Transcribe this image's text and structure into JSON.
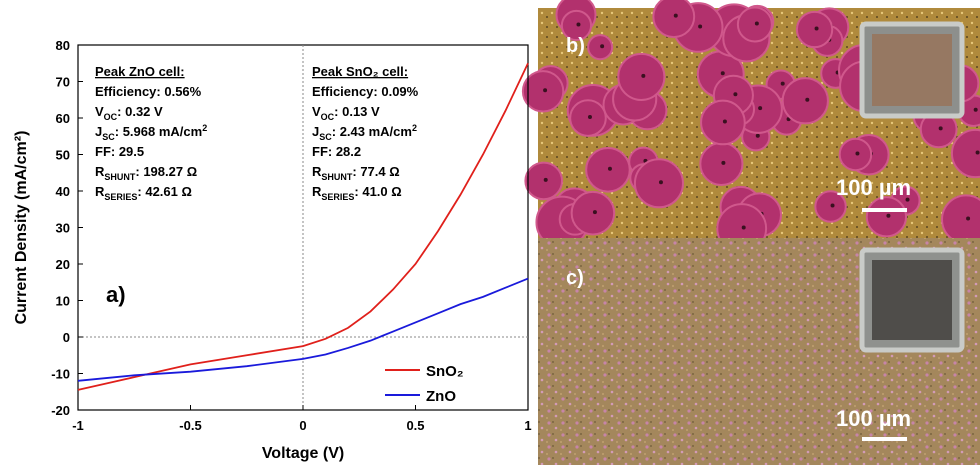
{
  "chart_data": {
    "type": "line",
    "panel_label": "a)",
    "x_label": "Voltage (V)",
    "y_label": "Current Density (mA/cm²)",
    "x": [
      -1,
      -0.75,
      -0.5,
      -0.25,
      0,
      0.1,
      0.2,
      0.3,
      0.4,
      0.5,
      0.6,
      0.7,
      0.8,
      0.9,
      1
    ],
    "series": [
      {
        "name": "SnO₂",
        "color": "#e0201b",
        "values": [
          -14.5,
          -11,
          -7.5,
          -5,
          -2.5,
          -0.5,
          2.5,
          7,
          13,
          20,
          29,
          39,
          50,
          62,
          75
        ]
      },
      {
        "name": "ZnO",
        "color": "#1a1adb",
        "values": [
          -12,
          -10.5,
          -9.5,
          -8,
          -6,
          -4.8,
          -3,
          -1,
          1.5,
          4,
          6.5,
          9,
          11,
          13.5,
          16
        ]
      }
    ],
    "xlim": [
      -1,
      1
    ],
    "ylim": [
      -20,
      80
    ],
    "xticks": [
      -1,
      -0.5,
      0,
      0.5,
      1
    ],
    "yticks": [
      -20,
      -10,
      0,
      10,
      20,
      30,
      40,
      50,
      60,
      70,
      80
    ],
    "zero_lines": true,
    "annotations": [
      {
        "heading": "Peak ZnO cell:",
        "lines": [
          [
            {
              "text": "Efficiency: 0.56%"
            }
          ],
          [
            {
              "text": "V"
            },
            {
              "text": "OC",
              "sub": true
            },
            {
              "text": ": 0.32 V"
            }
          ],
          [
            {
              "text": "J"
            },
            {
              "text": "SC",
              "sub": true
            },
            {
              "text": ": 5.968 mA/cm"
            },
            {
              "text": "2",
              "sup": true
            }
          ],
          [
            {
              "text": "FF: 29.5"
            }
          ],
          [
            {
              "text": "R"
            },
            {
              "text": "SHUNT",
              "sub": true
            },
            {
              "text": ": 198.27 Ω"
            }
          ],
          [
            {
              "text": "R"
            },
            {
              "text": "SERIES",
              "sub": true
            },
            {
              "text": ": 42.61 Ω"
            }
          ]
        ]
      },
      {
        "heading": "Peak SnO₂ cell:",
        "lines": [
          [
            {
              "text": "Efficiency: 0.09%"
            }
          ],
          [
            {
              "text": "V"
            },
            {
              "text": "OC",
              "sub": true
            },
            {
              "text": ": 0.13 V"
            }
          ],
          [
            {
              "text": "J"
            },
            {
              "text": "SC",
              "sub": true
            },
            {
              "text": ": 2.43 mA/cm"
            },
            {
              "text": "2",
              "sup": true
            }
          ],
          [
            {
              "text": "FF: 28.2"
            }
          ],
          [
            {
              "text": "R"
            },
            {
              "text": "SHUNT",
              "sub": true
            },
            {
              "text": ": 77.4 Ω"
            }
          ],
          [
            {
              "text": "R"
            },
            {
              "text": "SERIES",
              "sub": true
            },
            {
              "text": ": 41.0 Ω"
            }
          ]
        ]
      }
    ]
  },
  "panels": [
    {
      "label": "b)",
      "scale_bar": "100 µm"
    },
    {
      "label": "c)",
      "scale_bar": "100 µm"
    }
  ]
}
